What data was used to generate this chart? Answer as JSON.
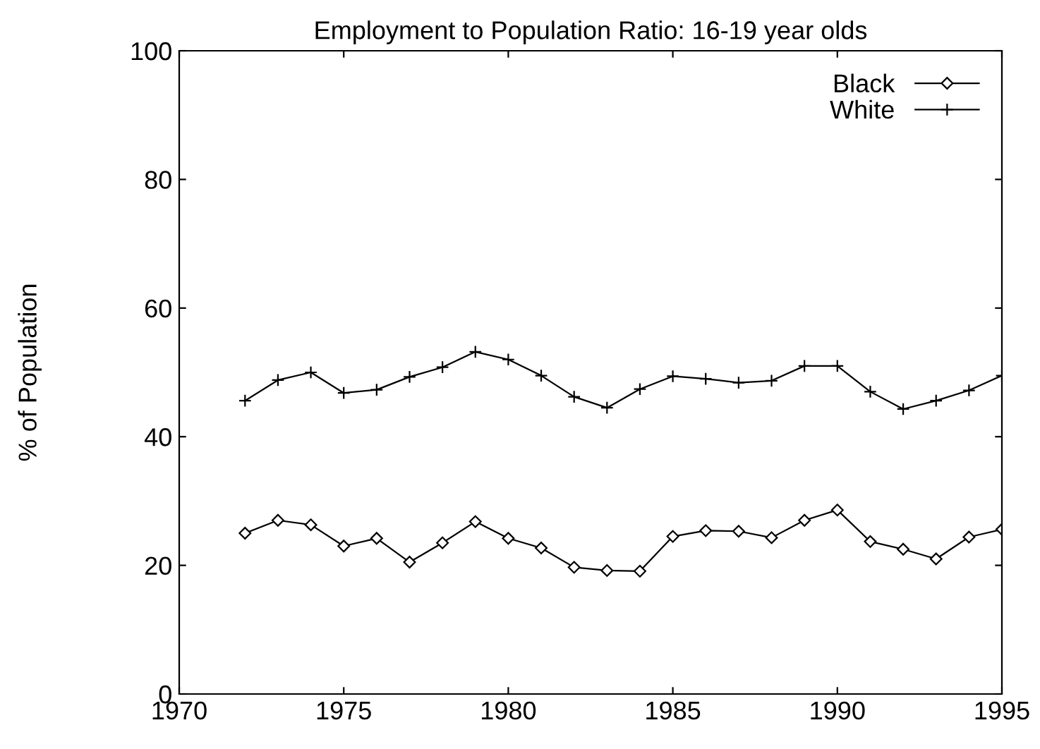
{
  "chart_data": {
    "type": "line",
    "title": "Employment to Population Ratio: 16-19 year olds",
    "ylabel": "% of Population",
    "x": [
      1972,
      1973,
      1974,
      1975,
      1976,
      1977,
      1978,
      1979,
      1980,
      1981,
      1982,
      1983,
      1984,
      1985,
      1986,
      1987,
      1988,
      1989,
      1990,
      1991,
      1992,
      1993,
      1994,
      1995
    ],
    "series": [
      {
        "name": "Black",
        "color": "#000000",
        "marker": "diamond",
        "values": [
          25,
          27,
          26.3,
          23,
          24.2,
          20.5,
          23.5,
          26.8,
          24.2,
          22.7,
          19.7,
          19.2,
          19.1,
          24.5,
          25.4,
          25.3,
          24.3,
          27,
          28.6,
          23.7,
          22.5,
          21,
          24.4,
          25.6
        ]
      },
      {
        "name": "White",
        "color": "#000000",
        "marker": "cross",
        "values": [
          45.6,
          48.8,
          50,
          46.8,
          47.3,
          49.3,
          50.8,
          53.2,
          52,
          49.5,
          46.2,
          44.5,
          47.4,
          49.4,
          49,
          48.4,
          48.7,
          51,
          51,
          47,
          44.3,
          45.6,
          47.2,
          49.5
        ]
      }
    ],
    "xlim": [
      1970,
      1995
    ],
    "ylim": [
      0,
      100
    ],
    "xticks": [
      1970,
      1975,
      1980,
      1985,
      1990,
      1995
    ],
    "yticks": [
      0,
      20,
      40,
      60,
      80,
      100
    ],
    "grid": false,
    "legend": "top right",
    "line_style": "solid"
  }
}
